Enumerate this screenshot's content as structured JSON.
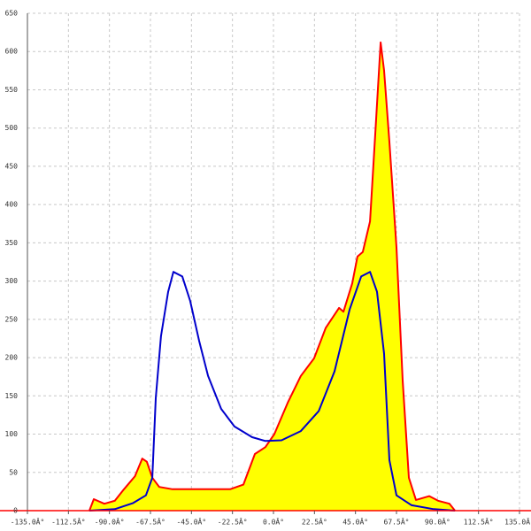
{
  "chart_data": {
    "type": "area",
    "xlim": [
      -135,
      135
    ],
    "ylim": [
      0,
      650
    ],
    "xticks": [
      {
        "value": -135,
        "label": "-135.0Â°"
      },
      {
        "value": -112.5,
        "label": "-112.5Â°"
      },
      {
        "value": -90,
        "label": "-90.0Â°"
      },
      {
        "value": -67.5,
        "label": "-67.5Â°"
      },
      {
        "value": -45,
        "label": "-45.0Â°"
      },
      {
        "value": -22.5,
        "label": "-22.5Â°"
      },
      {
        "value": 0,
        "label": "0.0Â°"
      },
      {
        "value": 22.5,
        "label": "22.5Â°"
      },
      {
        "value": 45,
        "label": "45.0Â°"
      },
      {
        "value": 67.5,
        "label": "67.5Â°"
      },
      {
        "value": 90,
        "label": "90.0Â°"
      },
      {
        "value": 112.5,
        "label": "112.5Â°"
      },
      {
        "value": 135,
        "label": "135.0Â°"
      }
    ],
    "yticks": [
      0,
      50,
      100,
      150,
      200,
      250,
      300,
      350,
      400,
      450,
      500,
      550,
      600,
      650
    ],
    "grid": true,
    "series": [
      {
        "color": "#ff0000",
        "fill": "#ffff00",
        "x": [
          -101,
          -98.6,
          -92.8,
          -87,
          -82,
          -76,
          -72,
          -69.5,
          -66.5,
          -62.7,
          -55.4,
          -38.4,
          -23.8,
          -16.5,
          -10.2,
          -4.4,
          0.5,
          7.8,
          15,
          22.3,
          28.7,
          36,
          38.4,
          43.2,
          46.1,
          49,
          53,
          55.9,
          58.8,
          60.7,
          63.6,
          67.5,
          70.9,
          74.3,
          78.2,
          85.5,
          90.3,
          96.6,
          99.6
        ],
        "values": [
          0,
          15,
          9,
          13,
          28,
          45,
          68,
          64,
          43,
          31,
          28,
          28,
          28,
          34,
          74,
          83,
          100,
          141,
          176,
          199,
          239,
          265,
          260,
          297,
          332,
          338,
          378,
          494,
          612,
          575,
          482,
          344,
          170,
          43,
          14,
          19,
          13,
          9,
          0
        ]
      },
      {
        "color": "#0000cc",
        "x": [
          -101,
          -87,
          -77,
          -70,
          -66.5,
          -64.6,
          -61.7,
          -57.8,
          -54.9,
          -50,
          -45.7,
          -40.8,
          -35.9,
          -28.7,
          -21.4,
          -11.7,
          -4.4,
          4.4,
          15,
          24.8,
          33.5,
          41.8,
          48.1,
          53,
          56.8,
          60.7,
          63.6,
          67.5,
          75.8,
          87.9,
          99.6
        ],
        "values": [
          0,
          2,
          10,
          20,
          43,
          147,
          228,
          286,
          312,
          306,
          274,
          222,
          176,
          133,
          110,
          96,
          91,
          92,
          104,
          130,
          182,
          263,
          306,
          312,
          286,
          205,
          66,
          20,
          7,
          2,
          0
        ]
      }
    ]
  }
}
